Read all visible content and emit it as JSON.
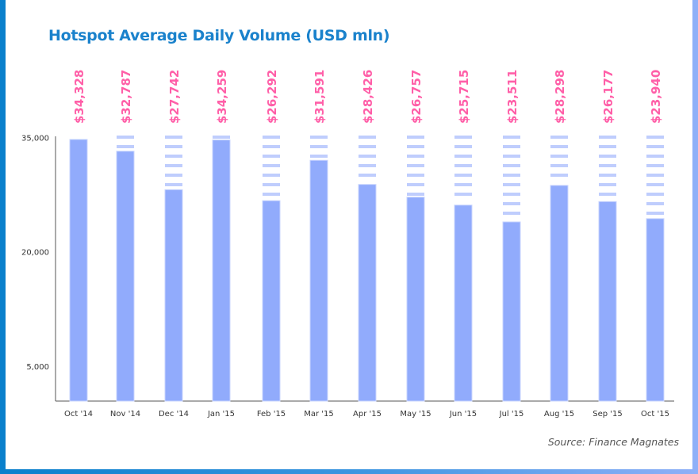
{
  "chart_data": {
    "type": "bar",
    "title": "Hotspot Average Daily Volume (USD mln)",
    "source": "Source: Finance Magnates",
    "categories": [
      "Oct '14",
      "Nov '14",
      "Dec '14",
      "Jan '15",
      "Feb '15",
      "Mar '15",
      "Apr '15",
      "May '15",
      "Jun '15",
      "Jul '15",
      "Aug '15",
      "Sep '15",
      "Oct '15"
    ],
    "values": [
      34328,
      32787,
      27742,
      34259,
      26292,
      31591,
      28426,
      26757,
      25715,
      23511,
      28298,
      26177,
      23940
    ],
    "value_labels": [
      "$34,328",
      "$32,787",
      "$27,742",
      "$34,259",
      "$26,292",
      "$31,591",
      "$28,426",
      "$26,757",
      "$25,715",
      "$23,511",
      "$28,298",
      "$26,177",
      "$23,940"
    ],
    "yticks": [
      35000,
      20000,
      5000
    ],
    "ytick_labels": [
      "35,000",
      "20,000",
      "5,000"
    ],
    "xlabel": "",
    "ylabel": "",
    "ylim": [
      0,
      35000
    ],
    "grid": false,
    "colors": {
      "bar": "#91abfc",
      "stripe": "#bfcdfd",
      "label": "#ff5fa8",
      "title": "#1a82cc"
    }
  }
}
